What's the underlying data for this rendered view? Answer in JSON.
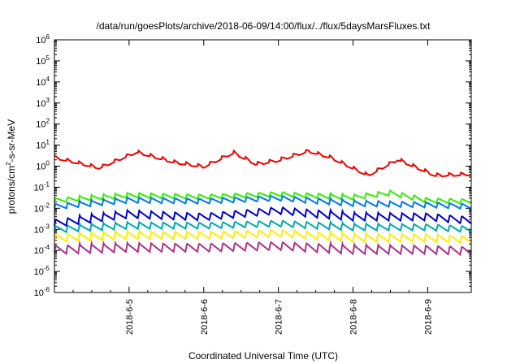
{
  "chart_data": {
    "type": "line",
    "title": "/data/run/goesPlots/archive/2018-06-09/14:00/flux/../flux/5daysMarsFluxes.txt",
    "xlabel": "Coordinated Universal Time (UTC)",
    "ylabel": "protons/cm²-s-sr-MeV",
    "y_scale": "log",
    "ylim": [
      1e-06,
      1000000.0
    ],
    "y_ticks": [
      {
        "value": 1000000.0,
        "base": "10",
        "exp": "6"
      },
      {
        "value": 100000.0,
        "base": "10",
        "exp": "5"
      },
      {
        "value": 10000.0,
        "base": "10",
        "exp": "4"
      },
      {
        "value": 1000.0,
        "base": "10",
        "exp": "3"
      },
      {
        "value": 100.0,
        "base": "10",
        "exp": "2"
      },
      {
        "value": 10.0,
        "base": "10",
        "exp": "1"
      },
      {
        "value": 1.0,
        "base": "10",
        "exp": "0"
      },
      {
        "value": 0.1,
        "base": "10",
        "exp": "-1"
      },
      {
        "value": 0.01,
        "base": "10",
        "exp": "-2"
      },
      {
        "value": 0.001,
        "base": "10",
        "exp": "-3"
      },
      {
        "value": 0.0001,
        "base": "10",
        "exp": "-4"
      },
      {
        "value": 1e-05,
        "base": "10",
        "exp": "-5"
      },
      {
        "value": 1e-06,
        "base": "10",
        "exp": "-6"
      }
    ],
    "xlim": [
      "2018-06-04 00:00",
      "2018-06-09 14:00"
    ],
    "x_ticks": [
      "2018-6-5",
      "2018-6-6",
      "2018-6-7",
      "2018-6-8",
      "2018-6-9"
    ],
    "grid": false,
    "legend": "none",
    "series": [
      {
        "color": "#ee0000",
        "x": [
          0,
          0.6,
          1.1,
          1.6,
          2.0,
          2.4,
          2.7,
          3.0,
          3.4,
          3.7,
          4.2,
          4.6,
          5.1,
          5.6
        ],
        "y": [
          2.5,
          0.8,
          4.5,
          1.5,
          0.9,
          4.2,
          1.2,
          1.8,
          5.0,
          2.5,
          0.35,
          2.0,
          0.35,
          0.4
        ]
      },
      {
        "color": "#33ee00",
        "x": [
          0,
          1.0,
          2.0,
          3.0,
          4.0,
          4.5,
          5.0,
          5.6
        ],
        "y": [
          0.02,
          0.035,
          0.03,
          0.04,
          0.028,
          0.045,
          0.02,
          0.018
        ]
      },
      {
        "color": "#0077ee",
        "x": [
          0,
          1.0,
          2.0,
          3.0,
          4.0,
          5.0,
          5.6
        ],
        "y": [
          0.01,
          0.02,
          0.018,
          0.025,
          0.014,
          0.012,
          0.01
        ]
      },
      {
        "color": "#0000cc",
        "x": [
          0,
          1.0,
          2.0,
          3.0,
          4.0,
          5.0,
          5.6
        ],
        "y": [
          0.0015,
          0.004,
          0.003,
          0.006,
          0.003,
          0.003,
          0.002
        ]
      },
      {
        "color": "#00aaaa",
        "x": [
          0,
          1.0,
          2.0,
          3.0,
          4.0,
          5.0,
          5.6
        ],
        "y": [
          0.0008,
          0.0012,
          0.0012,
          0.0015,
          0.001,
          0.001,
          0.0008
        ]
      },
      {
        "color": "#ffee00",
        "x": [
          0,
          1.0,
          2.0,
          3.0,
          4.0,
          5.0,
          5.6
        ],
        "y": [
          0.0003,
          0.0004,
          0.0004,
          0.0005,
          0.0003,
          0.0003,
          0.00025
        ]
      },
      {
        "color": "#aa3388",
        "x": [
          0,
          1.0,
          2.0,
          3.0,
          4.0,
          5.0,
          5.6
        ],
        "y": [
          8e-05,
          0.0001,
          0.0001,
          0.00012,
          8e-05,
          8e-05,
          7e-05
        ]
      }
    ]
  }
}
